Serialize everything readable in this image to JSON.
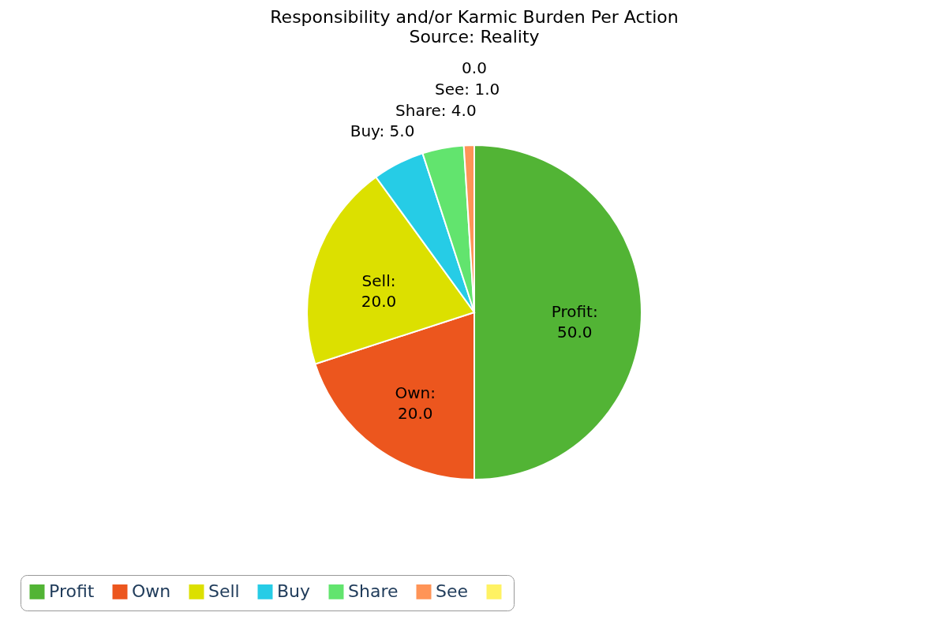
{
  "chart_data": {
    "type": "pie",
    "title": "Responsibility and/or Karmic Burden Per Action",
    "subtitle": "Source: Reality",
    "categories": [
      "Profit",
      "Own",
      "Sell",
      "Buy",
      "Share",
      "See",
      null
    ],
    "values": [
      50,
      20,
      20,
      5,
      4,
      1,
      0
    ],
    "value_labels": [
      "Profit: 50.0",
      "Own: 20.0",
      "Sell: 20.0",
      "Buy: 5.0",
      "Share: 4.0",
      "See: 1.0",
      "0.0"
    ],
    "colors": [
      "#52b435",
      "#ec561e",
      "#dce000",
      "#26cce6",
      "#62e46e",
      "#ff9457",
      "#fff263"
    ],
    "legend": "bottom"
  }
}
